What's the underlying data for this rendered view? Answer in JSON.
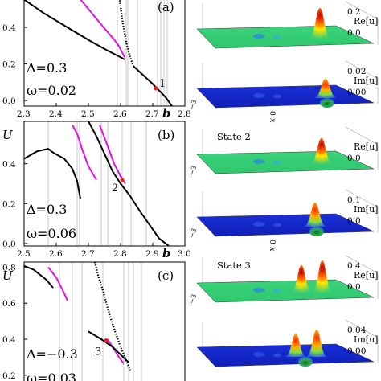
{
  "figure": {
    "panels": [
      {
        "tag": "(a)",
        "delta_label": "Δ=0.3",
        "omega_label": "ω=0.02",
        "y_axis_label": "",
        "x_axis_label": "b",
        "marker_label": "1",
        "xticks": [
          "2.3",
          "2.4",
          "2.5",
          "2.6",
          "2.7",
          "2.8"
        ],
        "yticks": [
          "0.0",
          "0.2",
          "0.4"
        ]
      },
      {
        "tag": "(b)",
        "delta_label": "Δ=0.3",
        "omega_label": "ω=0.06",
        "y_axis_label": "U",
        "x_axis_label": "b",
        "marker_label": "2",
        "xticks": [
          "2.5",
          "2.6",
          "2.7",
          "2.8",
          "2.9",
          "3.0"
        ],
        "yticks": [
          "0.0",
          "0.2",
          "0.4"
        ]
      },
      {
        "tag": "(c)",
        "delta_label": "Δ=−0.3",
        "omega_label": "ω=0.03",
        "y_axis_label": "U",
        "x_axis_label": "",
        "marker_label": "3",
        "xticks": [],
        "yticks": [
          "0.2",
          "0.4",
          "0.6",
          "0.8"
        ]
      }
    ],
    "surfaces": [
      {
        "state_label": "",
        "comp_label": "Re[u]",
        "ztick_top": "0.2",
        "ztick_bottom": "0.0",
        "xlabel": "",
        "xtick": "",
        "ytick": ""
      },
      {
        "state_label": "",
        "comp_label": "Im[u]",
        "ztick_top": "0.02",
        "ztick_bottom": "0.00",
        "xlabel": "x",
        "xtick": "0",
        "ytick": "−3"
      },
      {
        "state_label": "State 2",
        "comp_label": "Re[u]",
        "ztick_top": "",
        "ztick_bottom": "0.0",
        "xlabel": "",
        "xtick": "",
        "ytick": "−3"
      },
      {
        "state_label": "",
        "comp_label": "Im[u]",
        "ztick_top": "0.1",
        "ztick_bottom": "0.0",
        "xlabel": "x",
        "xtick": "0",
        "ytick": "−3"
      },
      {
        "state_label": "State 3",
        "comp_label": "Re[u]",
        "ztick_top": "0.4",
        "ztick_bottom": "0.0",
        "xlabel": "",
        "xtick": "",
        "ytick": "−3"
      },
      {
        "state_label": "",
        "comp_label": "Im[u]",
        "ztick_top": "0.04",
        "ztick_bottom": "0.00",
        "xlabel": "",
        "xtick": "",
        "ytick": ""
      }
    ]
  },
  "colors": {
    "branch_main": "#000000",
    "branch_unstable": "#e010e0",
    "marker": "#e8201c",
    "grid_lines": "#b0b0b0"
  }
}
